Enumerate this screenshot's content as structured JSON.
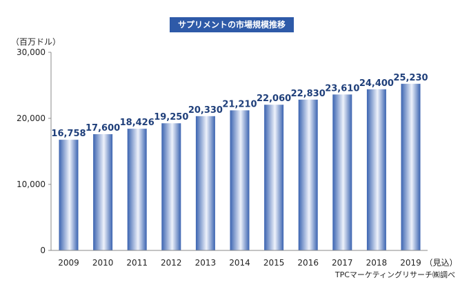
{
  "chart_data": {
    "type": "bar",
    "title": "サプリメントの市場規模推移",
    "ylabel": "（百万ドル）",
    "categories": [
      "2009",
      "2010",
      "2011",
      "2012",
      "2013",
      "2014",
      "2015",
      "2016",
      "2017",
      "2018",
      "2019"
    ],
    "values": [
      16758,
      17600,
      18426,
      19250,
      20330,
      21210,
      22060,
      22830,
      23610,
      24400,
      25230
    ],
    "data_labels": [
      "16,758",
      "17,600",
      "18,426",
      "19,250",
      "20,330",
      "21,210",
      "22,060",
      "22,830",
      "23,610",
      "24,400",
      "25,230"
    ],
    "ylim": [
      0,
      30000
    ],
    "yticks": [
      0,
      10000,
      20000,
      30000
    ],
    "ytick_labels": [
      "0",
      "10,000",
      "20,000",
      "30,000"
    ],
    "x_suffix": "（見込）",
    "grid": false,
    "bar_color": "#3a63b0"
  },
  "source": "TPCマーケティングリサーチ㈱調べ"
}
